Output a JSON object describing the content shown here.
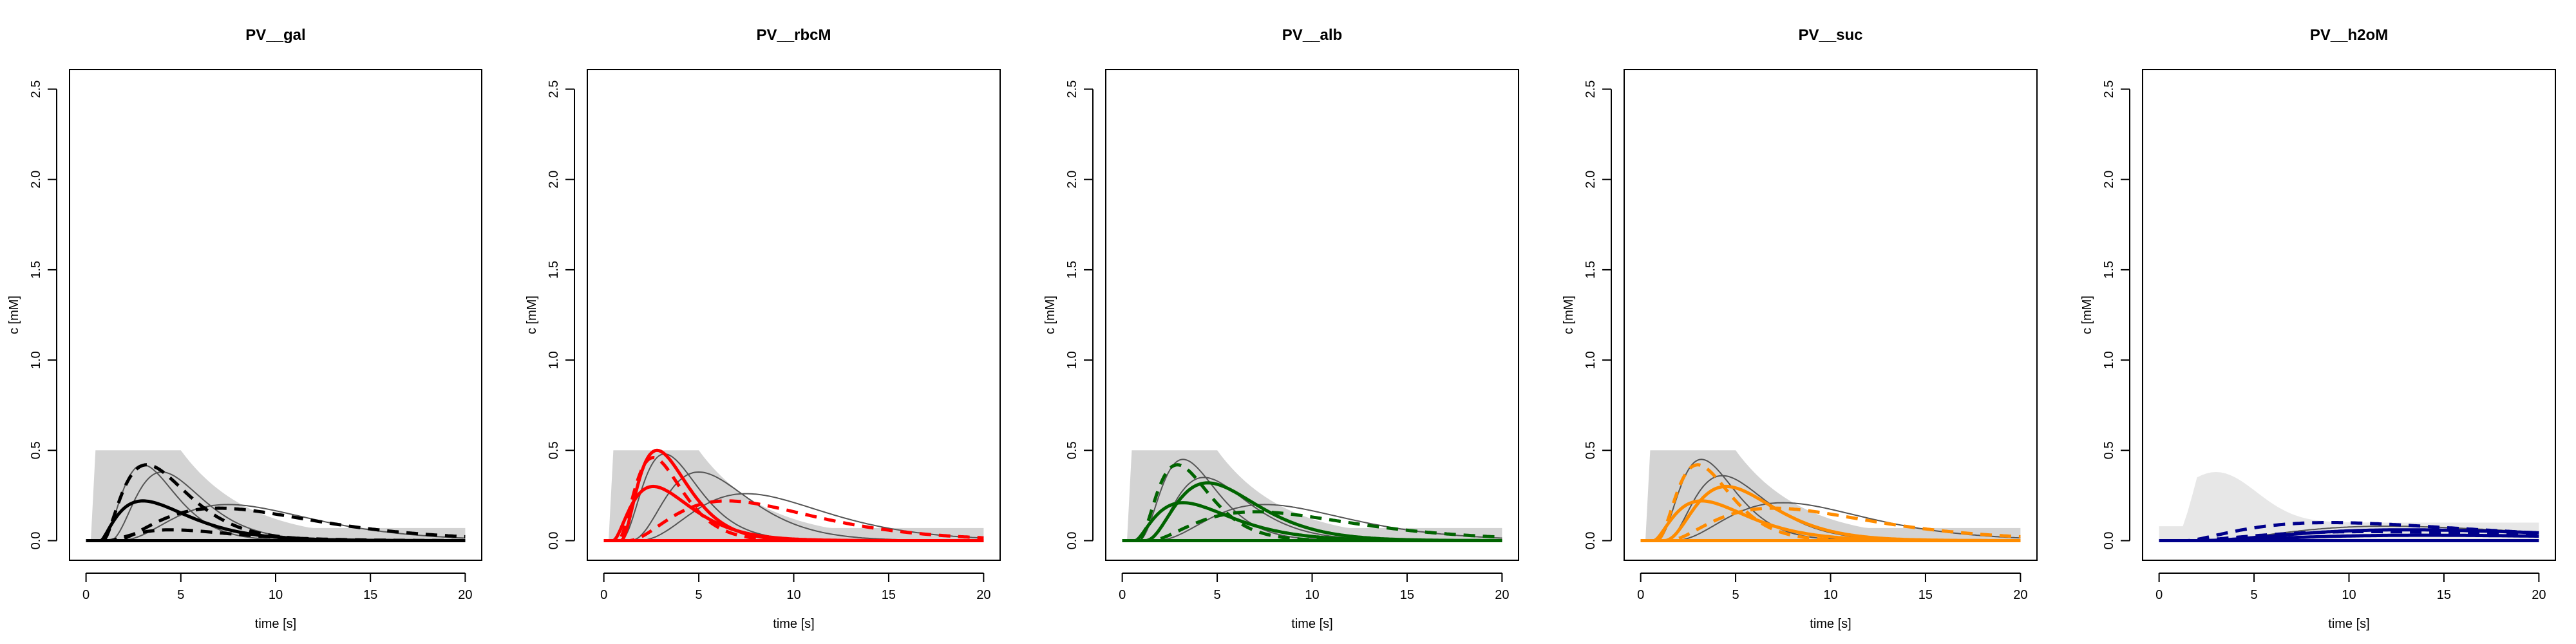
{
  "figure": {
    "xlabel": "time [s]",
    "ylabel": "c [mM]"
  },
  "chart_data": [
    {
      "type": "line",
      "title": "PV__gal",
      "xlabel": "time [s]",
      "ylabel": "c [mM]",
      "xlim": [
        0,
        20
      ],
      "ylim": [
        0,
        2.5
      ],
      "xticks": [
        0,
        5,
        10,
        15,
        20
      ],
      "yticks": [
        0.0,
        0.5,
        1.0,
        1.5,
        2.0,
        2.5
      ],
      "accent": "#000000",
      "background_band": "#d3d3d3",
      "series": [
        {
          "name": "gray-1",
          "kind": "thin",
          "color": "#555555",
          "t0": 0.8,
          "peak": 0.42,
          "tpeak": 3.0,
          "width": 0.9
        },
        {
          "name": "gray-2",
          "kind": "thin",
          "color": "#555555",
          "t0": 1.2,
          "peak": 0.38,
          "tpeak": 4.0,
          "width": 1.1
        },
        {
          "name": "gray-3",
          "kind": "thin",
          "color": "#555555",
          "t0": 1.6,
          "peak": 0.2,
          "tpeak": 7.5,
          "width": 2.2
        },
        {
          "name": "solid-main",
          "kind": "solid",
          "color": "#000000",
          "t0": 0.8,
          "peak": 0.22,
          "tpeak": 3.0,
          "width": 1.6
        },
        {
          "name": "dashed-high",
          "kind": "dashed",
          "color": "#000000",
          "t0": 0.9,
          "peak": 0.42,
          "tpeak": 3.2,
          "width": 1.3
        },
        {
          "name": "dashed-low",
          "kind": "dashed",
          "color": "#000000",
          "t0": 1.2,
          "peak": 0.06,
          "tpeak": 4.5,
          "width": 2.0
        },
        {
          "name": "dashed-tail",
          "kind": "dashed",
          "color": "#000000",
          "t0": 1.5,
          "peak": 0.18,
          "tpeak": 7.0,
          "width": 3.0
        }
      ]
    },
    {
      "type": "line",
      "title": "PV__rbcM",
      "xlabel": "time [s]",
      "ylabel": "c [mM]",
      "xlim": [
        0,
        20
      ],
      "ylim": [
        0,
        2.5
      ],
      "xticks": [
        0,
        5,
        10,
        15,
        20
      ],
      "yticks": [
        0.0,
        0.5,
        1.0,
        1.5,
        2.0,
        2.5
      ],
      "accent": "#ff0000",
      "background_band": "#d3d3d3",
      "series": [
        {
          "name": "gray-1",
          "kind": "thin",
          "color": "#555555",
          "t0": 0.8,
          "peak": 0.48,
          "tpeak": 3.2,
          "width": 0.9
        },
        {
          "name": "gray-2",
          "kind": "thin",
          "color": "#555555",
          "t0": 1.3,
          "peak": 0.38,
          "tpeak": 5.0,
          "width": 1.3
        },
        {
          "name": "gray-3",
          "kind": "thin",
          "color": "#555555",
          "t0": 1.6,
          "peak": 0.26,
          "tpeak": 7.5,
          "width": 2.0
        },
        {
          "name": "solid-main",
          "kind": "solid",
          "color": "#ff0000",
          "t0": 0.5,
          "peak": 0.3,
          "tpeak": 2.6,
          "width": 1.2
        },
        {
          "name": "solid-peak",
          "kind": "solid",
          "color": "#ff0000",
          "t0": 0.9,
          "peak": 0.5,
          "tpeak": 2.8,
          "width": 0.9
        },
        {
          "name": "dashed-high",
          "kind": "dashed",
          "color": "#ff0000",
          "t0": 0.7,
          "peak": 0.46,
          "tpeak": 2.6,
          "width": 0.8
        },
        {
          "name": "dashed-tail",
          "kind": "dashed",
          "color": "#ff0000",
          "t0": 1.3,
          "peak": 0.22,
          "tpeak": 6.5,
          "width": 2.6
        }
      ]
    },
    {
      "type": "line",
      "title": "PV__alb",
      "xlabel": "time [s]",
      "ylabel": "c [mM]",
      "xlim": [
        0,
        20
      ],
      "ylim": [
        0,
        2.5
      ],
      "xticks": [
        0,
        5,
        10,
        15,
        20
      ],
      "yticks": [
        0.0,
        0.5,
        1.0,
        1.5,
        2.0,
        2.5
      ],
      "accent": "#006400",
      "background_band": "#d3d3d3",
      "series": [
        {
          "name": "gray-1",
          "kind": "thin",
          "color": "#555555",
          "t0": 0.8,
          "peak": 0.45,
          "tpeak": 3.2,
          "width": 0.9
        },
        {
          "name": "gray-2",
          "kind": "thin",
          "color": "#555555",
          "t0": 1.3,
          "peak": 0.35,
          "tpeak": 4.3,
          "width": 1.2
        },
        {
          "name": "gray-3",
          "kind": "thin",
          "color": "#555555",
          "t0": 1.6,
          "peak": 0.2,
          "tpeak": 7.5,
          "width": 2.2
        },
        {
          "name": "solid-main",
          "kind": "solid",
          "color": "#006400",
          "t0": 0.7,
          "peak": 0.21,
          "tpeak": 3.2,
          "width": 1.6
        },
        {
          "name": "solid-second",
          "kind": "solid",
          "color": "#006400",
          "t0": 1.2,
          "peak": 0.32,
          "tpeak": 4.5,
          "width": 1.4
        },
        {
          "name": "dashed-high",
          "kind": "dashed",
          "color": "#006400",
          "t0": 0.8,
          "peak": 0.42,
          "tpeak": 2.9,
          "width": 0.9
        },
        {
          "name": "dashed-tail",
          "kind": "dashed",
          "color": "#006400",
          "t0": 1.5,
          "peak": 0.16,
          "tpeak": 7.0,
          "width": 3.0
        }
      ]
    },
    {
      "type": "line",
      "title": "PV__suc",
      "xlabel": "time [s]",
      "ylabel": "c [mM]",
      "xlim": [
        0,
        20
      ],
      "ylim": [
        0,
        2.5
      ],
      "xticks": [
        0,
        5,
        10,
        15,
        20
      ],
      "yticks": [
        0.0,
        0.5,
        1.0,
        1.5,
        2.0,
        2.5
      ],
      "accent": "#ff8c00",
      "background_band": "#d3d3d3",
      "series": [
        {
          "name": "gray-1",
          "kind": "thin",
          "color": "#555555",
          "t0": 0.8,
          "peak": 0.45,
          "tpeak": 3.2,
          "width": 0.9
        },
        {
          "name": "gray-2",
          "kind": "thin",
          "color": "#555555",
          "t0": 1.3,
          "peak": 0.36,
          "tpeak": 4.3,
          "width": 1.2
        },
        {
          "name": "gray-3",
          "kind": "thin",
          "color": "#555555",
          "t0": 1.6,
          "peak": 0.21,
          "tpeak": 7.5,
          "width": 2.2
        },
        {
          "name": "solid-main",
          "kind": "solid",
          "color": "#ff8c00",
          "t0": 0.7,
          "peak": 0.22,
          "tpeak": 3.2,
          "width": 1.5
        },
        {
          "name": "solid-second",
          "kind": "solid",
          "color": "#ff8c00",
          "t0": 1.2,
          "peak": 0.3,
          "tpeak": 4.5,
          "width": 1.3
        },
        {
          "name": "dashed-high",
          "kind": "dashed",
          "color": "#ff8c00",
          "t0": 0.8,
          "peak": 0.42,
          "tpeak": 3.0,
          "width": 0.9
        },
        {
          "name": "dashed-tail",
          "kind": "dashed",
          "color": "#ff8c00",
          "t0": 1.5,
          "peak": 0.18,
          "tpeak": 7.0,
          "width": 3.0
        }
      ]
    },
    {
      "type": "line",
      "title": "PV__h2oM",
      "xlabel": "time [s]",
      "ylabel": "c [mM]",
      "xlim": [
        0,
        20
      ],
      "ylim": [
        0,
        2.5
      ],
      "xticks": [
        0,
        5,
        10,
        15,
        20
      ],
      "yticks": [
        0.0,
        0.5,
        1.0,
        1.5,
        2.0,
        2.5
      ],
      "accent": "#00008b",
      "background_band": "#d3d3d3",
      "series": [
        {
          "name": "gray-1",
          "kind": "thin",
          "color": "#555555",
          "t0": 2.0,
          "peak": 0.08,
          "tpeak": 12.0,
          "width": 4.0
        },
        {
          "name": "solid-main",
          "kind": "solid",
          "color": "#00008b",
          "t0": 2.0,
          "peak": 0.06,
          "tpeak": 13.0,
          "width": 5.0
        },
        {
          "name": "solid-low",
          "kind": "solid",
          "color": "#00008b",
          "t0": 2.0,
          "peak": 0.03,
          "tpeak": 14.0,
          "width": 6.0
        },
        {
          "name": "dashed-high",
          "kind": "dashed",
          "color": "#00008b",
          "t0": 1.5,
          "peak": 0.1,
          "tpeak": 9.0,
          "width": 5.0
        },
        {
          "name": "dashed-low",
          "kind": "dashed",
          "color": "#00008b",
          "t0": 1.5,
          "peak": 0.05,
          "tpeak": 11.0,
          "width": 5.5
        }
      ]
    }
  ]
}
